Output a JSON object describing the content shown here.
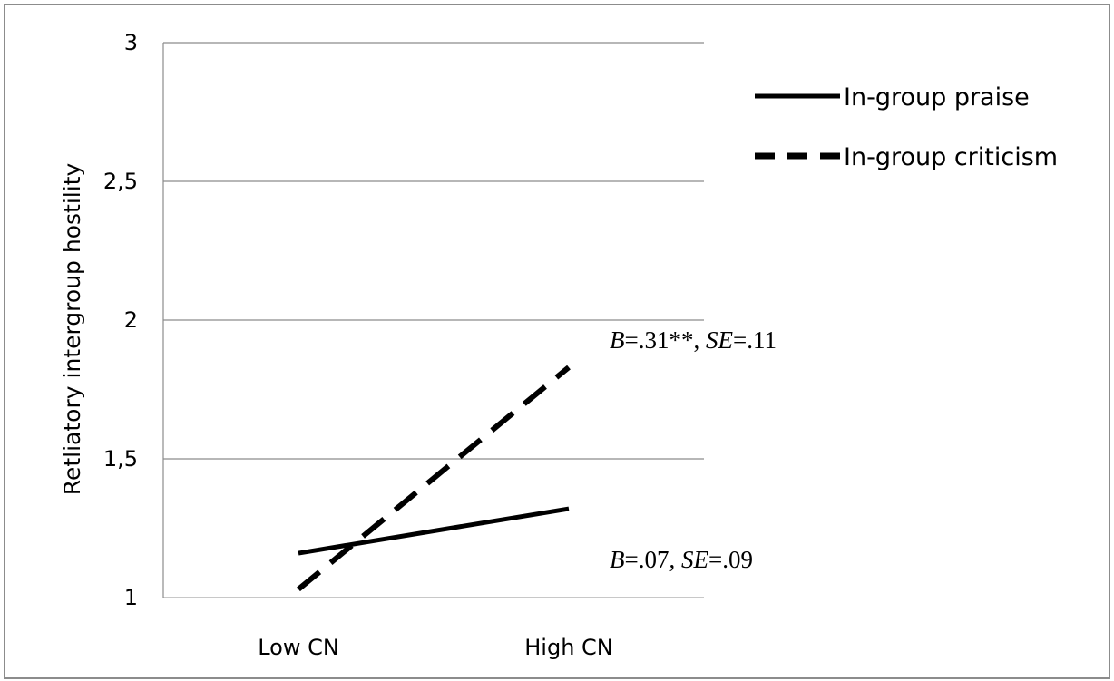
{
  "chart_data": {
    "type": "line",
    "title": "",
    "xlabel": "",
    "ylabel": "Retliatory intergroup hostility",
    "categories": [
      "Low CN",
      "High CN"
    ],
    "ylim": [
      1,
      3
    ],
    "yticks": [
      1,
      1.5,
      2,
      2.5,
      3
    ],
    "ytick_labels": [
      "1",
      "1,5",
      "2",
      "2,5",
      "3"
    ],
    "grid": "horizontal",
    "legend_position": "top-right",
    "series": [
      {
        "name": "In-group praise",
        "values": [
          1.16,
          1.32
        ],
        "style": "solid",
        "color": "#000000"
      },
      {
        "name": "In-group criticism",
        "values": [
          1.03,
          1.83
        ],
        "style": "dashed",
        "color": "#000000"
      }
    ],
    "annotations": [
      {
        "series": "In-group criticism",
        "b_label": "B",
        "b_value": "=.31**, ",
        "se_label": "SE",
        "se_value": "=.11"
      },
      {
        "series": "In-group praise",
        "b_label": "B",
        "b_value": "=.07, ",
        "se_label": "SE",
        "se_value": "=.09"
      }
    ]
  }
}
